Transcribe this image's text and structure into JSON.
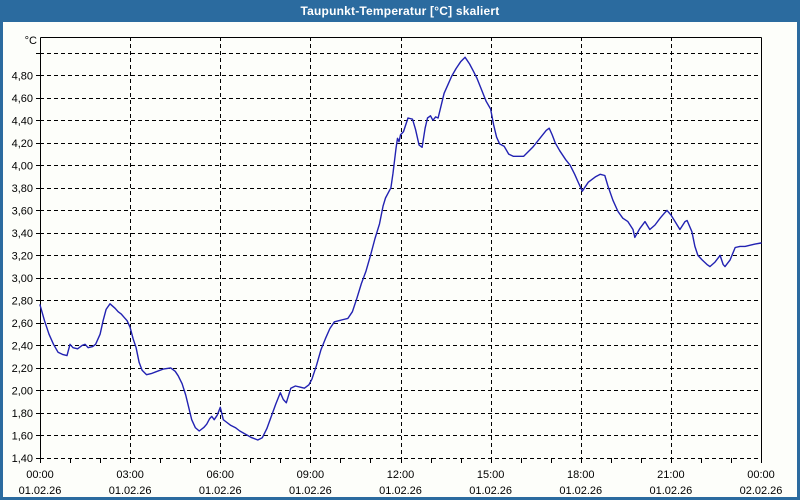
{
  "window": {
    "title": "Taupunkt-Temperatur [°C] skaliert"
  },
  "chart_data": {
    "type": "line",
    "title": "Taupunkt-Temperatur [°C] skaliert",
    "grid": true,
    "legend_position": "none",
    "y_axis": {
      "unit": "°C",
      "ylim": [
        1.4,
        5.14
      ],
      "tick_step": 0.2,
      "gridline_values": [
        1.4,
        1.6,
        1.8,
        2.0,
        2.2,
        2.4,
        2.6,
        2.8,
        3.0,
        3.2,
        3.4,
        3.6,
        3.8,
        4.0,
        4.2,
        4.4,
        4.6,
        4.8,
        5.0
      ],
      "tick_labels": [
        "1,40",
        "1,60",
        "1,80",
        "2,00",
        "2,20",
        "2,40",
        "2,60",
        "2,80",
        "3,00",
        "3,20",
        "3,40",
        "3,60",
        "3,80",
        "4,00",
        "4,20",
        "4,40",
        "4,60",
        "4,80"
      ]
    },
    "x_axis": {
      "range_hours": [
        0,
        24
      ],
      "major_tick_hours": 3,
      "minor_tick_hours": 1,
      "ticks": [
        {
          "hour": 0,
          "time": "00:00",
          "date": "01.02.26"
        },
        {
          "hour": 3,
          "time": "03:00",
          "date": "01.02.26"
        },
        {
          "hour": 6,
          "time": "06:00",
          "date": "01.02.26"
        },
        {
          "hour": 9,
          "time": "09:00",
          "date": "01.02.26"
        },
        {
          "hour": 12,
          "time": "12:00",
          "date": "01.02.26"
        },
        {
          "hour": 15,
          "time": "15:00",
          "date": "01.02.26"
        },
        {
          "hour": 18,
          "time": "18:00",
          "date": "01.02.26"
        },
        {
          "hour": 21,
          "time": "21:00",
          "date": "01.02.26"
        },
        {
          "hour": 24,
          "time": "00:00",
          "date": "02.02.26"
        }
      ]
    },
    "series": {
      "color": "#2222b2",
      "points": [
        [
          0.0,
          2.76
        ],
        [
          0.15,
          2.62
        ],
        [
          0.3,
          2.5
        ],
        [
          0.45,
          2.41
        ],
        [
          0.6,
          2.34
        ],
        [
          0.75,
          2.32
        ],
        [
          0.9,
          2.31
        ],
        [
          1.0,
          2.41
        ],
        [
          1.1,
          2.38
        ],
        [
          1.25,
          2.37
        ],
        [
          1.4,
          2.4
        ],
        [
          1.5,
          2.41
        ],
        [
          1.6,
          2.38
        ],
        [
          1.75,
          2.39
        ],
        [
          1.85,
          2.41
        ],
        [
          2.0,
          2.5
        ],
        [
          2.1,
          2.62
        ],
        [
          2.2,
          2.72
        ],
        [
          2.33,
          2.77
        ],
        [
          2.5,
          2.73
        ],
        [
          2.6,
          2.7
        ],
        [
          2.7,
          2.68
        ],
        [
          2.8,
          2.65
        ],
        [
          2.9,
          2.62
        ],
        [
          3.0,
          2.56
        ],
        [
          3.1,
          2.46
        ],
        [
          3.2,
          2.38
        ],
        [
          3.3,
          2.25
        ],
        [
          3.4,
          2.18
        ],
        [
          3.55,
          2.14
        ],
        [
          3.7,
          2.15
        ],
        [
          3.9,
          2.17
        ],
        [
          4.1,
          2.19
        ],
        [
          4.35,
          2.2
        ],
        [
          4.5,
          2.17
        ],
        [
          4.6,
          2.13
        ],
        [
          4.73,
          2.06
        ],
        [
          4.85,
          1.96
        ],
        [
          4.95,
          1.85
        ],
        [
          5.05,
          1.74
        ],
        [
          5.17,
          1.67
        ],
        [
          5.3,
          1.64
        ],
        [
          5.45,
          1.67
        ],
        [
          5.55,
          1.7
        ],
        [
          5.65,
          1.75
        ],
        [
          5.72,
          1.77
        ],
        [
          5.8,
          1.74
        ],
        [
          5.9,
          1.78
        ],
        [
          6.0,
          1.85
        ],
        [
          6.1,
          1.74
        ],
        [
          6.2,
          1.72
        ],
        [
          6.35,
          1.69
        ],
        [
          6.5,
          1.67
        ],
        [
          6.65,
          1.64
        ],
        [
          6.85,
          1.61
        ],
        [
          7.05,
          1.58
        ],
        [
          7.25,
          1.56
        ],
        [
          7.4,
          1.58
        ],
        [
          7.55,
          1.66
        ],
        [
          7.7,
          1.77
        ],
        [
          7.85,
          1.88
        ],
        [
          8.0,
          1.98
        ],
        [
          8.1,
          1.92
        ],
        [
          8.2,
          1.89
        ],
        [
          8.35,
          2.02
        ],
        [
          8.5,
          2.04
        ],
        [
          8.65,
          2.03
        ],
        [
          8.8,
          2.02
        ],
        [
          8.95,
          2.05
        ],
        [
          9.05,
          2.1
        ],
        [
          9.2,
          2.22
        ],
        [
          9.35,
          2.36
        ],
        [
          9.5,
          2.46
        ],
        [
          9.65,
          2.55
        ],
        [
          9.8,
          2.61
        ],
        [
          9.95,
          2.62
        ],
        [
          10.1,
          2.63
        ],
        [
          10.25,
          2.64
        ],
        [
          10.4,
          2.7
        ],
        [
          10.55,
          2.82
        ],
        [
          10.7,
          2.95
        ],
        [
          10.85,
          3.06
        ],
        [
          11.0,
          3.2
        ],
        [
          11.15,
          3.35
        ],
        [
          11.3,
          3.48
        ],
        [
          11.42,
          3.64
        ],
        [
          11.5,
          3.71
        ],
        [
          11.6,
          3.76
        ],
        [
          11.68,
          3.8
        ],
        [
          11.75,
          3.93
        ],
        [
          11.85,
          4.15
        ],
        [
          11.9,
          4.24
        ],
        [
          11.95,
          4.21
        ],
        [
          12.0,
          4.27
        ],
        [
          12.1,
          4.3
        ],
        [
          12.25,
          4.42
        ],
        [
          12.4,
          4.41
        ],
        [
          12.5,
          4.32
        ],
        [
          12.62,
          4.18
        ],
        [
          12.72,
          4.16
        ],
        [
          12.82,
          4.33
        ],
        [
          12.9,
          4.42
        ],
        [
          13.0,
          4.44
        ],
        [
          13.08,
          4.4
        ],
        [
          13.17,
          4.43
        ],
        [
          13.25,
          4.42
        ],
        [
          13.35,
          4.53
        ],
        [
          13.45,
          4.64
        ],
        [
          13.6,
          4.73
        ],
        [
          13.7,
          4.79
        ],
        [
          13.85,
          4.86
        ],
        [
          14.0,
          4.92
        ],
        [
          14.15,
          4.96
        ],
        [
          14.3,
          4.9
        ],
        [
          14.42,
          4.84
        ],
        [
          14.55,
          4.77
        ],
        [
          14.7,
          4.67
        ],
        [
          14.85,
          4.57
        ],
        [
          15.0,
          4.5
        ],
        [
          15.1,
          4.36
        ],
        [
          15.2,
          4.25
        ],
        [
          15.3,
          4.19
        ],
        [
          15.45,
          4.17
        ],
        [
          15.6,
          4.1
        ],
        [
          15.75,
          4.08
        ],
        [
          15.95,
          4.08
        ],
        [
          16.1,
          4.08
        ],
        [
          16.25,
          4.12
        ],
        [
          16.4,
          4.16
        ],
        [
          16.55,
          4.21
        ],
        [
          16.7,
          4.26
        ],
        [
          16.85,
          4.31
        ],
        [
          16.95,
          4.33
        ],
        [
          17.05,
          4.27
        ],
        [
          17.15,
          4.2
        ],
        [
          17.3,
          4.13
        ],
        [
          17.5,
          4.05
        ],
        [
          17.65,
          4.0
        ],
        [
          17.8,
          3.92
        ],
        [
          17.9,
          3.86
        ],
        [
          18.05,
          3.77
        ],
        [
          18.25,
          3.85
        ],
        [
          18.5,
          3.9
        ],
        [
          18.65,
          3.92
        ],
        [
          18.8,
          3.91
        ],
        [
          18.9,
          3.82
        ],
        [
          19.07,
          3.69
        ],
        [
          19.24,
          3.59
        ],
        [
          19.4,
          3.53
        ],
        [
          19.57,
          3.5
        ],
        [
          19.74,
          3.43
        ],
        [
          19.8,
          3.36
        ],
        [
          19.97,
          3.44
        ],
        [
          20.14,
          3.5
        ],
        [
          20.3,
          3.43
        ],
        [
          20.47,
          3.47
        ],
        [
          20.64,
          3.53
        ],
        [
          20.8,
          3.58
        ],
        [
          20.87,
          3.6
        ],
        [
          21.0,
          3.56
        ],
        [
          21.14,
          3.5
        ],
        [
          21.3,
          3.43
        ],
        [
          21.47,
          3.5
        ],
        [
          21.54,
          3.51
        ],
        [
          21.7,
          3.41
        ],
        [
          21.8,
          3.28
        ],
        [
          21.9,
          3.2
        ],
        [
          22.04,
          3.16
        ],
        [
          22.2,
          3.12
        ],
        [
          22.3,
          3.1
        ],
        [
          22.47,
          3.14
        ],
        [
          22.64,
          3.2
        ],
        [
          22.74,
          3.12
        ],
        [
          22.8,
          3.1
        ],
        [
          22.97,
          3.16
        ],
        [
          23.14,
          3.27
        ],
        [
          23.3,
          3.28
        ],
        [
          23.47,
          3.28
        ],
        [
          23.64,
          3.29
        ],
        [
          23.8,
          3.3
        ],
        [
          24.0,
          3.31
        ]
      ]
    },
    "colors": {
      "title_bar": "#2b6b9f",
      "background": "#fdfefa",
      "grid": "#000000",
      "text": "#000000",
      "line": "#2222b2"
    }
  }
}
